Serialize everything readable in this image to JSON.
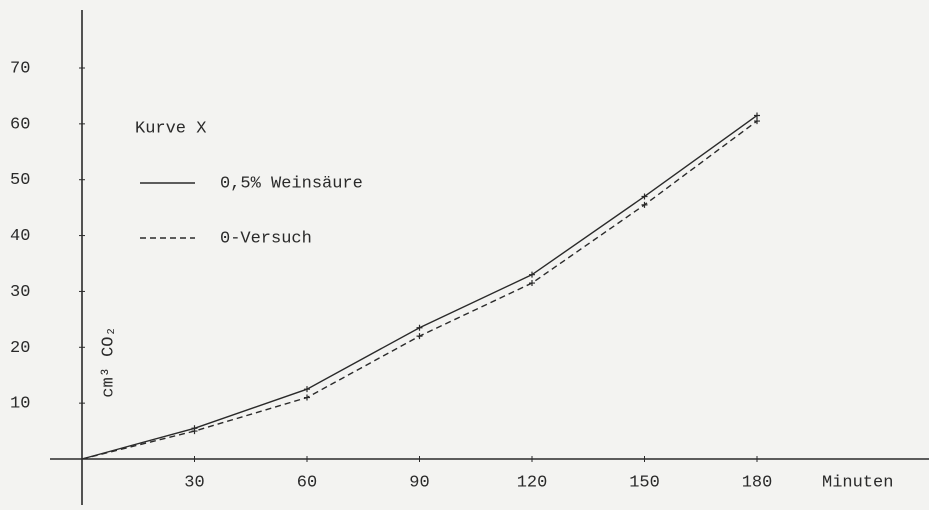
{
  "chart_data": {
    "type": "line",
    "x_label": "Minuten",
    "y_label": "cm³ CO₂",
    "legend_title": "Kurve X",
    "x": [
      0,
      30,
      60,
      90,
      120,
      150,
      180
    ],
    "series": [
      {
        "name": "0,5% Weinsäure",
        "color": "#2a2a2a",
        "dash": "solid",
        "values": [
          0,
          5.5,
          12.5,
          23.5,
          33,
          47,
          61.5
        ]
      },
      {
        "name": "0-Versuch",
        "color": "#2a2a2a",
        "dash": "dashed",
        "values": [
          0,
          5,
          11,
          22,
          31.5,
          45.5,
          60.5
        ]
      }
    ],
    "xlim": [
      0,
      180
    ],
    "xticks": [
      30,
      60,
      90,
      120,
      150,
      180
    ],
    "ylim": [
      0,
      70
    ],
    "yticks": [
      10,
      20,
      30,
      40,
      50,
      60,
      70
    ],
    "grid": false,
    "legend": "upper left"
  }
}
